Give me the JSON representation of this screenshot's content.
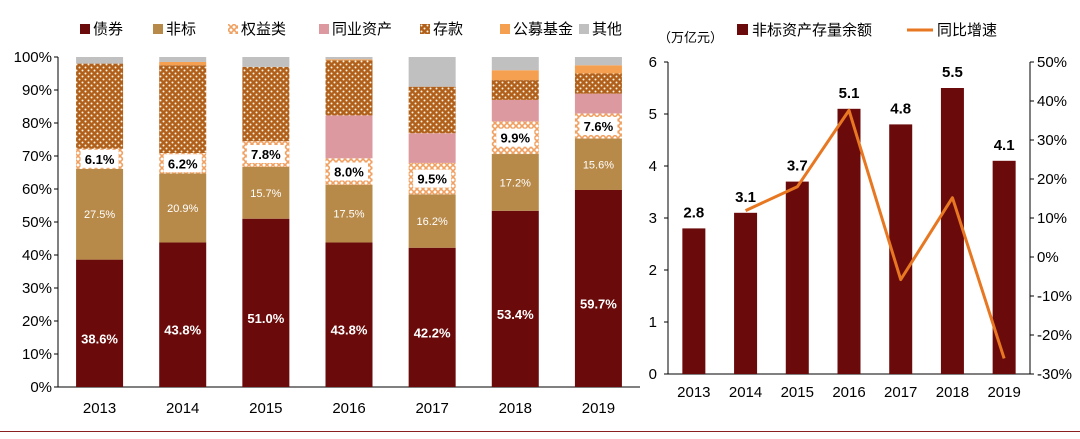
{
  "chart_data": [
    {
      "type": "bar",
      "stacked": true,
      "categories": [
        "2013",
        "2014",
        "2015",
        "2016",
        "2017",
        "2018",
        "2019"
      ],
      "ylim": [
        0,
        100
      ],
      "yticks": [
        "0%",
        "10%",
        "20%",
        "30%",
        "40%",
        "50%",
        "60%",
        "70%",
        "80%",
        "90%",
        "100%"
      ],
      "legend_position": "top",
      "grid": false,
      "series": [
        {
          "name": "债券",
          "color": "#6b0a0a",
          "pattern": "solid",
          "values": [
            38.6,
            43.8,
            51.0,
            43.8,
            42.2,
            53.4,
            59.7
          ],
          "labels": [
            "38.6%",
            "43.8%",
            "51.0%",
            "43.8%",
            "42.2%",
            "53.4%",
            "59.7%"
          ]
        },
        {
          "name": "非标",
          "color": "#b88a4a",
          "pattern": "solid",
          "values": [
            27.5,
            20.9,
            15.7,
            17.5,
            16.2,
            17.2,
            15.6
          ],
          "labels": [
            "27.5%",
            "20.9%",
            "15.7%",
            "17.5%",
            "16.2%",
            "17.2%",
            "15.6%"
          ]
        },
        {
          "name": "权益类",
          "color": "#f0a060",
          "pattern": "lattice",
          "values": [
            6.1,
            6.2,
            7.8,
            8.0,
            9.5,
            9.9,
            7.6
          ],
          "labels": [
            "6.1%",
            "6.2%",
            "7.8%",
            "8.0%",
            "9.5%",
            "9.9%",
            "7.6%"
          ]
        },
        {
          "name": "同业资产",
          "color": "#dc9aa0",
          "pattern": "solid",
          "values": [
            0,
            0,
            0,
            13.0,
            9.0,
            6.5,
            6.0
          ]
        },
        {
          "name": "存款",
          "color": "#b0601a",
          "pattern": "dots",
          "values": [
            25.8,
            26.6,
            22.5,
            16.7,
            14.1,
            6.0,
            6.1
          ]
        },
        {
          "name": "公募基金",
          "color": "#f5a050",
          "pattern": "solid",
          "values": [
            0,
            1.0,
            0,
            0.3,
            0,
            3.0,
            2.5
          ]
        },
        {
          "name": "其他",
          "color": "#c0c0c0",
          "pattern": "solid",
          "values": [
            2.0,
            1.5,
            3.0,
            0.7,
            9.0,
            4.0,
            2.5
          ]
        }
      ]
    },
    {
      "type": "bar+line",
      "categories": [
        "2013",
        "2014",
        "2015",
        "2016",
        "2017",
        "2018",
        "2019"
      ],
      "left_axis_unit": "（万亿元）",
      "left_ylim": [
        0,
        6
      ],
      "left_yticks": [
        "0",
        "1",
        "2",
        "3",
        "4",
        "5",
        "6"
      ],
      "right_ylim": [
        -30,
        50
      ],
      "right_yticks": [
        "-30%",
        "-20%",
        "-10%",
        "0%",
        "10%",
        "20%",
        "30%",
        "40%",
        "50%"
      ],
      "legend_position": "top",
      "grid": false,
      "bar_series": {
        "name": "非标资产存量余额",
        "color": "#6b0a0a",
        "values": [
          2.8,
          3.1,
          3.7,
          5.1,
          4.8,
          5.5,
          4.1
        ],
        "labels": [
          "2.8",
          "3.1",
          "3.7",
          "5.1",
          "4.8",
          "5.5",
          "4.1"
        ]
      },
      "line_series": {
        "name": "同比增速",
        "color": "#e87722",
        "values": [
          null,
          11.9,
          18.0,
          37.6,
          -5.8,
          15.2,
          -26.0
        ]
      }
    }
  ]
}
